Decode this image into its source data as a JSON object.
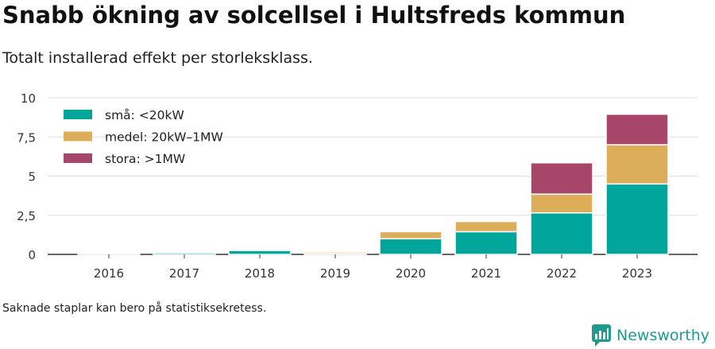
{
  "title": "Snabb ökning av solcellsel i Hultsfreds kommun",
  "subtitle": "Totalt installerad effekt per storleksklass.",
  "footnote": "Saknade staplar kan bero på statistiksekretess.",
  "brand": {
    "name": "Newsworthy",
    "icon": "newsworthy-logo-icon",
    "color": "#1e9a8f"
  },
  "chart_data": {
    "type": "bar",
    "stacked": true,
    "categories": [
      "2016",
      "2017",
      "2018",
      "2019",
      "2020",
      "2021",
      "2022",
      "2023"
    ],
    "series": [
      {
        "name": "små: <20kW",
        "color": "#00a69c",
        "values": [
          0.02,
          0.1,
          0.25,
          0.05,
          1.0,
          1.45,
          2.65,
          4.5
        ]
      },
      {
        "name": "medel: 20kW–1MW",
        "color": "#dcae5a",
        "values": [
          0,
          0,
          0,
          0.1,
          0.45,
          0.65,
          1.2,
          2.5
        ]
      },
      {
        "name": "stora: >1MW",
        "color": "#a8466a",
        "values": [
          0,
          0,
          0,
          0,
          0,
          0,
          2.0,
          1.95
        ]
      }
    ],
    "ylim": [
      0,
      10
    ],
    "yticks": [
      0,
      2.5,
      5,
      7.5,
      10
    ],
    "ytick_labels": [
      "0",
      "2,5",
      "5",
      "7,5",
      "10"
    ],
    "grid": true,
    "legend_position": "top-left"
  }
}
